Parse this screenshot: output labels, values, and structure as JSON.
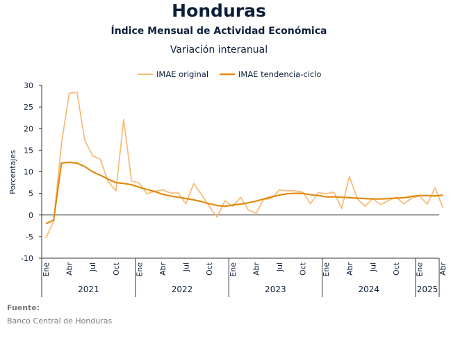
{
  "header": {
    "title": "Honduras",
    "subtitle": "Índice Mensual de Actividad Económica",
    "subtitle2": "Variación interanual"
  },
  "footer": {
    "source_label": "Fuente:",
    "source_text": "Banco Central de Honduras"
  },
  "colors": {
    "original": "#f7bd7a",
    "trend": "#e08a0c",
    "axis": "#333333",
    "text": "#0b1f3a"
  },
  "chart_data": {
    "type": "line",
    "ylabel": "Porcentajes",
    "ylim": [
      -10,
      30
    ],
    "yticks": [
      -10,
      -5,
      0,
      5,
      10,
      15,
      20,
      25,
      30
    ],
    "grid": false,
    "legend_position": "top-center",
    "month_tick_labels": [
      {
        "index": 0,
        "label": "Ene"
      },
      {
        "index": 3,
        "label": "Abr"
      },
      {
        "index": 6,
        "label": "Jul"
      },
      {
        "index": 9,
        "label": "Oct"
      },
      {
        "index": 12,
        "label": "Ene"
      },
      {
        "index": 15,
        "label": "Abr"
      },
      {
        "index": 18,
        "label": "Jul"
      },
      {
        "index": 21,
        "label": "Oct"
      },
      {
        "index": 24,
        "label": "Ene"
      },
      {
        "index": 27,
        "label": "Abr"
      },
      {
        "index": 30,
        "label": "Jul"
      },
      {
        "index": 33,
        "label": "Oct"
      },
      {
        "index": 36,
        "label": "Ene"
      },
      {
        "index": 39,
        "label": "Abr"
      },
      {
        "index": 42,
        "label": "Jul"
      },
      {
        "index": 45,
        "label": "Oct"
      },
      {
        "index": 48,
        "label": "Ene"
      },
      {
        "index": 51,
        "label": "Abr"
      }
    ],
    "years": [
      {
        "label": "2021",
        "start": 0,
        "end": 11
      },
      {
        "label": "2022",
        "start": 12,
        "end": 23
      },
      {
        "label": "2023",
        "start": 24,
        "end": 35
      },
      {
        "label": "2024",
        "start": 36,
        "end": 47
      },
      {
        "label": "2025",
        "start": 48,
        "end": 51
      }
    ],
    "series": [
      {
        "name": "IMAE original",
        "values": [
          -5.3,
          -1.5,
          16.5,
          28.2,
          28.4,
          17.3,
          13.7,
          12.9,
          7.7,
          5.6,
          22.1,
          7.9,
          7.4,
          4.9,
          5.5,
          5.8,
          5.1,
          5.1,
          2.6,
          7.3,
          4.7,
          2.0,
          -0.5,
          3.3,
          2.0,
          4.1,
          1.2,
          0.4,
          3.6,
          3.8,
          5.8,
          5.6,
          5.6,
          5.3,
          2.6,
          5.2,
          4.9,
          5.3,
          1.5,
          8.9,
          3.8,
          2.0,
          3.8,
          2.4,
          3.3,
          4.1,
          2.6,
          3.9,
          4.4,
          2.5,
          6.3,
          1.7
        ]
      },
      {
        "name": "IMAE tendencia-ciclo",
        "values": [
          -2.0,
          -1.2,
          12.0,
          12.2,
          12.0,
          11.2,
          10.0,
          9.2,
          8.3,
          7.5,
          7.3,
          7.0,
          6.4,
          5.9,
          5.4,
          4.8,
          4.4,
          4.1,
          3.8,
          3.5,
          3.1,
          2.6,
          2.2,
          2.0,
          2.3,
          2.5,
          2.8,
          3.2,
          3.7,
          4.2,
          4.6,
          4.9,
          5.0,
          5.0,
          4.7,
          4.5,
          4.2,
          4.2,
          4.1,
          4.0,
          3.9,
          3.8,
          3.7,
          3.7,
          3.8,
          3.9,
          4.0,
          4.3,
          4.5,
          4.5,
          4.4,
          4.6
        ]
      }
    ]
  }
}
